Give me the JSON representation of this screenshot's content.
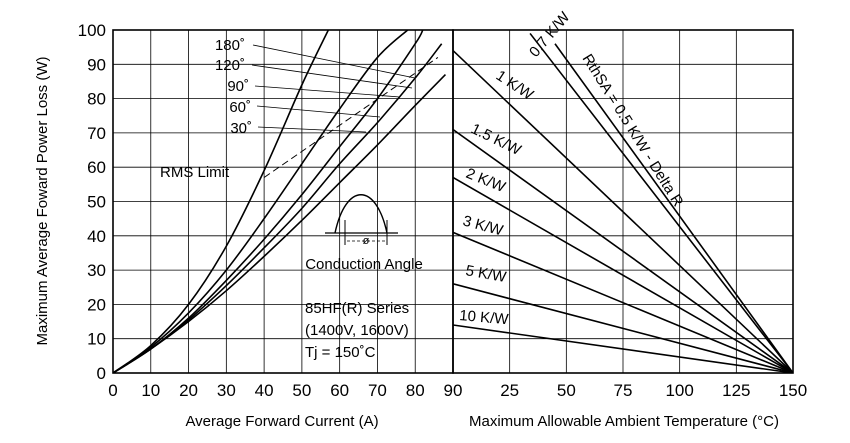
{
  "chart_data": [
    {
      "type": "line",
      "xlabel": "Average Forward Current (A)",
      "ylabel": "Maximum Average Foward Power Loss (W)",
      "xlim": [
        0,
        90
      ],
      "ylim": [
        0,
        100
      ],
      "x_ticks": [
        "0",
        "10",
        "20",
        "30",
        "40",
        "50",
        "60",
        "70",
        "80",
        "90"
      ],
      "y_ticks": [
        "0",
        "10",
        "20",
        "30",
        "40",
        "50",
        "60",
        "70",
        "80",
        "90",
        "100"
      ],
      "grid": true,
      "series": [
        {
          "name": "180°",
          "x": [
            0,
            10,
            20,
            30,
            40,
            50,
            57
          ],
          "y": [
            0,
            8,
            20,
            37,
            59,
            84,
            100
          ]
        },
        {
          "name": "120°",
          "x": [
            0,
            10,
            20,
            30,
            40,
            50,
            60,
            70,
            78
          ],
          "y": [
            0,
            7.5,
            17.5,
            30,
            45,
            61,
            77,
            92,
            100
          ]
        },
        {
          "name": "90°",
          "x": [
            0,
            10,
            20,
            30,
            40,
            50,
            60,
            70,
            80,
            82
          ],
          "y": [
            0,
            7,
            16,
            27,
            39,
            52,
            66,
            80,
            96,
            100
          ]
        },
        {
          "name": "60°",
          "x": [
            0,
            10,
            20,
            30,
            40,
            50,
            60,
            70,
            80,
            87
          ],
          "y": [
            0,
            7,
            15.5,
            25.5,
            36.5,
            48,
            61,
            73,
            86,
            96
          ]
        },
        {
          "name": "30°",
          "x": [
            0,
            10,
            20,
            30,
            40,
            50,
            60,
            70,
            80,
            88
          ],
          "y": [
            0,
            7,
            15,
            24,
            34,
            44.5,
            55.5,
            66.5,
            78,
            87
          ]
        }
      ],
      "rms_limit": {
        "label": "RMS Limit",
        "x": [
          40,
          86
        ],
        "y": [
          57,
          92
        ]
      },
      "angle_labels": [
        "180˚",
        "120˚",
        "90˚",
        "60˚",
        "30˚"
      ],
      "inset": {
        "caption": "Conduction Angle",
        "symbol": "ø",
        "series_lines": [
          "85HF(R) Series",
          "(1400V, 1600V)",
          "Tj  = 150˚C"
        ]
      }
    },
    {
      "type": "line",
      "xlabel": "Maximum Allowable Ambient Temperature (°C)",
      "xlim": [
        0,
        150
      ],
      "ylim": [
        0,
        100
      ],
      "x_ticks": [
        "90",
        "25",
        "50",
        "75",
        "100",
        "125",
        "150"
      ],
      "grid": true,
      "series": [
        {
          "name": "RthSA = 0.5 K/W - Delta R",
          "x": [
            45,
            150
          ],
          "y": [
            96,
            0
          ]
        },
        {
          "name": "0.7 K/W",
          "x": [
            34,
            150
          ],
          "y": [
            99,
            0
          ]
        },
        {
          "name": "1 K/W",
          "x": [
            0,
            150
          ],
          "y": [
            94,
            0
          ]
        },
        {
          "name": "1.5 K/W",
          "x": [
            0,
            150
          ],
          "y": [
            71,
            0
          ]
        },
        {
          "name": "2 K/W",
          "x": [
            0,
            150
          ],
          "y": [
            57,
            0
          ]
        },
        {
          "name": "3 K/W",
          "x": [
            0,
            150
          ],
          "y": [
            41,
            0
          ]
        },
        {
          "name": "5 K/W",
          "x": [
            0,
            150
          ],
          "y": [
            26,
            0
          ]
        },
        {
          "name": "10 K/W",
          "x": [
            0,
            150
          ],
          "y": [
            14,
            0
          ]
        }
      ]
    }
  ]
}
